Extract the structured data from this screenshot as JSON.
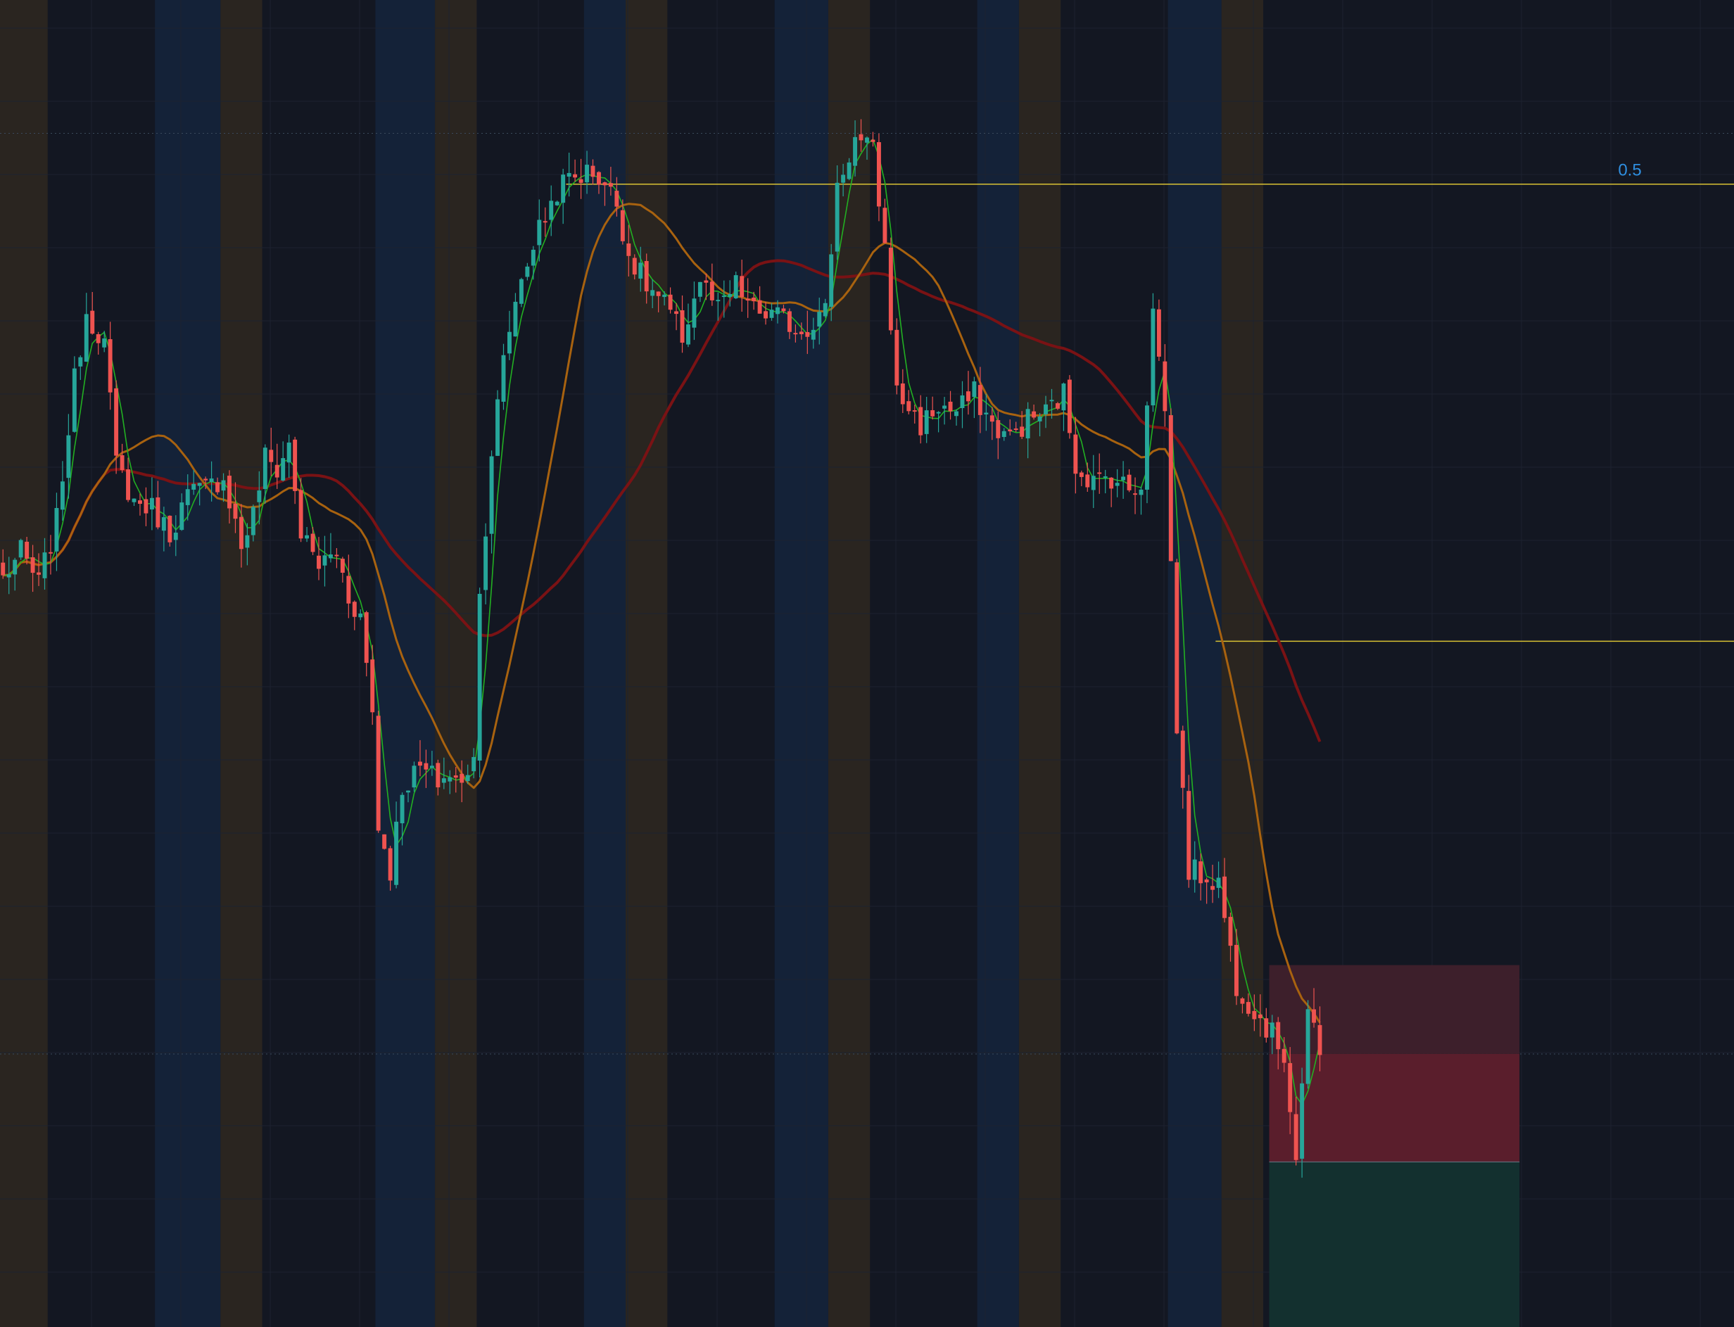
{
  "colors": {
    "background": "#131722",
    "grid": "#1c2230",
    "bull": "#26a69a",
    "bear": "#ef5350",
    "sma_fast": "#22b022",
    "sma_mid": "#a8620f",
    "sma_slow": "#7a1214",
    "hline": "#d9c233",
    "fib_label": "#2f8fe0",
    "session_blue": "#142238",
    "session_brown": "#2a2520",
    "stop_zone": "#5a1e2c",
    "stop_zone_upper": "#3d1f2b",
    "target_zone": "#13302f"
  },
  "fib_level": {
    "label": "0.5",
    "price": 0.05
  },
  "chart_data": {
    "type": "candlestick",
    "title": "",
    "xlabel": "",
    "ylabel": "",
    "ylim": [
      -1.75,
      0.34
    ],
    "xlim": [
      0,
      291
    ],
    "grid": true,
    "price_levels": [
      {
        "name": "fib-0.5",
        "price": 0.05,
        "from_bar": 95
      },
      {
        "name": "horizontal-line",
        "price": -0.67,
        "from_bar": 204
      }
    ],
    "dotted_levels": [
      0.13,
      -1.32
    ],
    "position_box": {
      "from_bar": 213,
      "to_bar": 255,
      "stop_top": -1.18,
      "entry_mid": -1.32,
      "entry": -1.49,
      "target": -1.85
    },
    "sessions": [
      {
        "start_bar": 0,
        "end_bar": 8,
        "kind": "brown"
      },
      {
        "start_bar": 26,
        "end_bar": 37,
        "kind": "blue"
      },
      {
        "start_bar": 37,
        "end_bar": 44,
        "kind": "brown"
      },
      {
        "start_bar": 63,
        "end_bar": 73,
        "kind": "blue"
      },
      {
        "start_bar": 73,
        "end_bar": 80,
        "kind": "brown"
      },
      {
        "start_bar": 98,
        "end_bar": 105,
        "kind": "blue"
      },
      {
        "start_bar": 105,
        "end_bar": 112,
        "kind": "brown"
      },
      {
        "start_bar": 130,
        "end_bar": 139,
        "kind": "blue"
      },
      {
        "start_bar": 139,
        "end_bar": 146,
        "kind": "brown"
      },
      {
        "start_bar": 164,
        "end_bar": 171,
        "kind": "blue"
      },
      {
        "start_bar": 171,
        "end_bar": 178,
        "kind": "brown"
      },
      {
        "start_bar": 196,
        "end_bar": 205,
        "kind": "blue"
      },
      {
        "start_bar": 205,
        "end_bar": 212,
        "kind": "brown"
      }
    ],
    "close_path": [
      [
        0,
        -0.57
      ],
      [
        3,
        -0.53
      ],
      [
        6,
        -0.58
      ],
      [
        9,
        -0.48
      ],
      [
        12,
        -0.26
      ],
      [
        14,
        -0.15
      ],
      [
        17,
        -0.2
      ],
      [
        19,
        -0.39
      ],
      [
        22,
        -0.45
      ],
      [
        25,
        -0.46
      ],
      [
        28,
        -0.5
      ],
      [
        31,
        -0.44
      ],
      [
        34,
        -0.43
      ],
      [
        37,
        -0.41
      ],
      [
        40,
        -0.52
      ],
      [
        42,
        -0.47
      ],
      [
        44,
        -0.38
      ],
      [
        46,
        -0.4
      ],
      [
        48,
        -0.36
      ],
      [
        50,
        -0.5
      ],
      [
        53,
        -0.55
      ],
      [
        56,
        -0.53
      ],
      [
        58,
        -0.6
      ],
      [
        60,
        -0.63
      ],
      [
        62,
        -0.78
      ],
      [
        63,
        -0.96
      ],
      [
        65,
        -1.03
      ],
      [
        67,
        -0.9
      ],
      [
        70,
        -0.87
      ],
      [
        73,
        -0.89
      ],
      [
        75,
        -0.88
      ],
      [
        77,
        -0.9
      ],
      [
        79,
        -0.84
      ],
      [
        80,
        -0.6
      ],
      [
        82,
        -0.37
      ],
      [
        84,
        -0.23
      ],
      [
        86,
        -0.13
      ],
      [
        88,
        -0.07
      ],
      [
        90,
        -0.02
      ],
      [
        93,
        0.04
      ],
      [
        95,
        0.06
      ],
      [
        99,
        0.07
      ],
      [
        101,
        0.05
      ],
      [
        103,
        0.02
      ],
      [
        105,
        -0.06
      ],
      [
        108,
        -0.11
      ],
      [
        111,
        -0.14
      ],
      [
        114,
        -0.19
      ],
      [
        117,
        -0.1
      ],
      [
        120,
        -0.15
      ],
      [
        123,
        -0.11
      ],
      [
        126,
        -0.15
      ],
      [
        130,
        -0.16
      ],
      [
        134,
        -0.18
      ],
      [
        138,
        -0.15
      ],
      [
        140,
        0.05
      ],
      [
        143,
        0.12
      ],
      [
        146,
        0.1
      ],
      [
        148,
        -0.05
      ],
      [
        150,
        -0.28
      ],
      [
        152,
        -0.3
      ],
      [
        154,
        -0.33
      ],
      [
        157,
        -0.3
      ],
      [
        160,
        -0.31
      ],
      [
        163,
        -0.28
      ],
      [
        166,
        -0.33
      ],
      [
        169,
        -0.35
      ],
      [
        172,
        -0.32
      ],
      [
        175,
        -0.31
      ],
      [
        178,
        -0.28
      ],
      [
        180,
        -0.39
      ],
      [
        183,
        -0.42
      ],
      [
        186,
        -0.41
      ],
      [
        189,
        -0.43
      ],
      [
        191,
        -0.42
      ],
      [
        193,
        -0.15
      ],
      [
        195,
        -0.3
      ],
      [
        197,
        -0.8
      ],
      [
        199,
        -1.03
      ],
      [
        202,
        -1.04
      ],
      [
        204,
        -1.05
      ],
      [
        207,
        -1.21
      ],
      [
        210,
        -1.25
      ],
      [
        213,
        -1.29
      ],
      [
        215,
        -1.32
      ],
      [
        217,
        -1.48
      ],
      [
        219,
        -1.25
      ],
      [
        221,
        -1.33
      ]
    ]
  }
}
